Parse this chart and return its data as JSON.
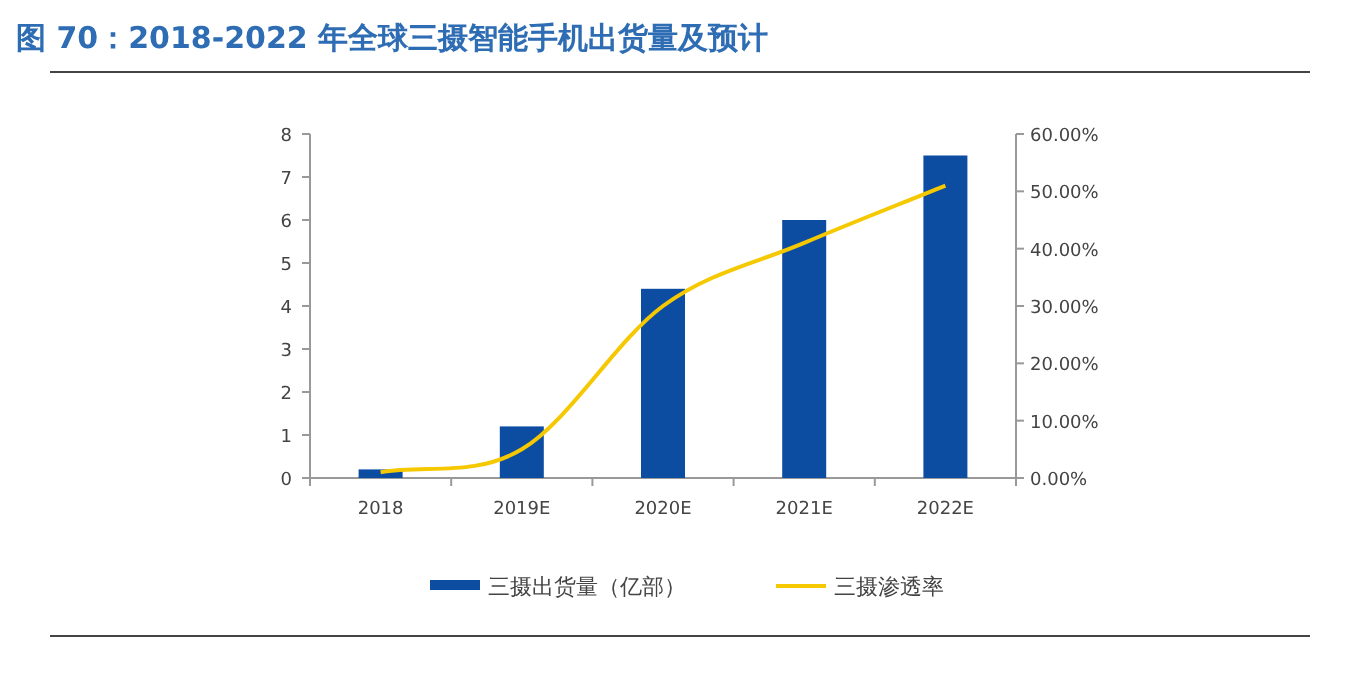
{
  "chart_data": {
    "type": "bar",
    "title": "图 70：2018-2022 年全球三摄智能手机出货量及预计",
    "categories": [
      "2018",
      "2019E",
      "2020E",
      "2021E",
      "2022E"
    ],
    "series": [
      {
        "name": "三摄出货量（亿部）",
        "color": "#0c4da2",
        "values": [
          0.2,
          1.2,
          4.4,
          6.0,
          7.5
        ]
      },
      {
        "name": "三摄渗透率",
        "type": "line",
        "axis": "y2",
        "color": "#f5c800",
        "values": [
          1,
          5,
          30,
          41,
          51
        ]
      }
    ],
    "ylim": [
      0,
      8
    ],
    "yticks": [
      0,
      1,
      2,
      3,
      4,
      5,
      6,
      7,
      8
    ],
    "y2lim": [
      0,
      60
    ],
    "y2ticks": [
      {
        "value": 0,
        "label": "0.00%"
      },
      {
        "value": 10,
        "label": "10.00%"
      },
      {
        "value": 20,
        "label": "20.00%"
      },
      {
        "value": 30,
        "label": "30.00%"
      },
      {
        "value": 40,
        "label": "40.00%"
      },
      {
        "value": 50,
        "label": "50.00%"
      },
      {
        "value": 60,
        "label": "60.00%"
      }
    ],
    "legend": "bottom",
    "marker": "none",
    "line_style": "solid"
  }
}
